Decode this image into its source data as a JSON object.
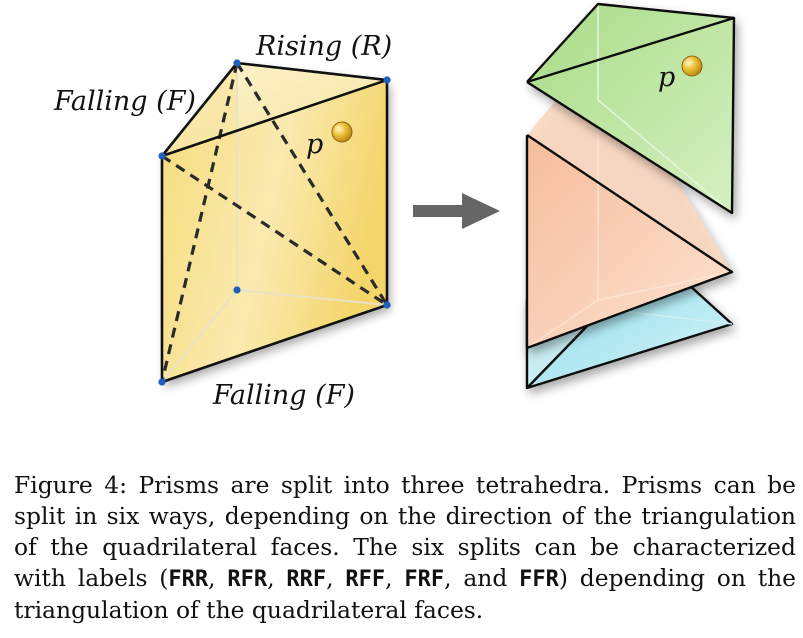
{
  "figure": {
    "labels": {
      "rising": "Rising (R)",
      "falling_left": "Falling (F)",
      "falling_bottom": "Falling (F)",
      "point_left": "p",
      "point_right": "p"
    },
    "colors": {
      "prism_face": "#f5dd7c",
      "prism_face_light": "#fbefbf",
      "vertex": "#1f5fbf",
      "point": "#e0b020",
      "arrow": "#666666",
      "tet_top": "#b9e49a",
      "tet_middle": "#f7c7a8",
      "tet_bottom": "#9fe0ec"
    }
  },
  "caption": {
    "figure_label": "Figure 4:",
    "text_1": "Prisms are split into three tetrahedra. Prisms can be split in six ways, depending on the direction of the triangulation of the quadrilateral faces. The six splits can be characterized with labels (",
    "codes": [
      "FRR",
      "RFR",
      "RRF",
      "RFF",
      "FRF",
      "FFR"
    ],
    "sep": ", ",
    "sep_last": ", and ",
    "text_2": ") depending on the triangulation of the quadrilateral faces."
  }
}
